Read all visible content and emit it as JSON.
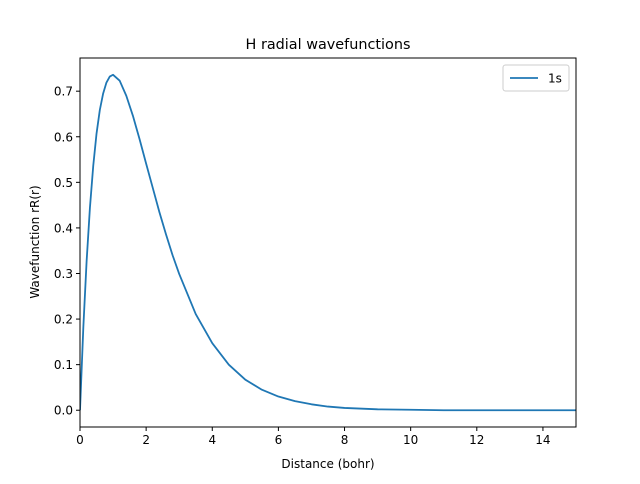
{
  "chart_data": {
    "type": "line",
    "title": "H radial wavefunctions",
    "xlabel": "Distance (bohr)",
    "ylabel": "Wavefunction rR(r)",
    "xlim": [
      0,
      15
    ],
    "ylim": [
      -0.0368,
      0.7728
    ],
    "xticks": [
      0,
      2,
      4,
      6,
      8,
      10,
      12,
      14
    ],
    "yticks": [
      0.0,
      0.1,
      0.2,
      0.3,
      0.4,
      0.5,
      0.6,
      0.7
    ],
    "xtick_labels": [
      "0",
      "2",
      "4",
      "6",
      "8",
      "10",
      "12",
      "14"
    ],
    "ytick_labels": [
      "0.0",
      "0.1",
      "0.2",
      "0.3",
      "0.4",
      "0.5",
      "0.6",
      "0.7"
    ],
    "grid": false,
    "legend_position": "top-right",
    "series": [
      {
        "name": "1s",
        "color": "#1f77b4",
        "x": [
          0,
          0.1,
          0.2,
          0.3,
          0.4,
          0.5,
          0.6,
          0.7,
          0.8,
          0.9,
          1.0,
          1.2,
          1.4,
          1.6,
          1.8,
          2.0,
          2.2,
          2.4,
          2.6,
          2.8,
          3.0,
          3.5,
          4.0,
          4.5,
          5.0,
          5.5,
          6.0,
          6.5,
          7.0,
          7.5,
          8.0,
          9.0,
          10.0,
          11.0,
          12.0,
          13.0,
          14.0,
          15.0
        ],
        "y": [
          0.0,
          0.181,
          0.327,
          0.444,
          0.536,
          0.607,
          0.659,
          0.695,
          0.719,
          0.732,
          0.736,
          0.723,
          0.69,
          0.646,
          0.595,
          0.541,
          0.488,
          0.435,
          0.386,
          0.34,
          0.299,
          0.211,
          0.147,
          0.1,
          0.067,
          0.045,
          0.03,
          0.02,
          0.013,
          0.008,
          0.005,
          0.002,
          0.001,
          0.0,
          0.0,
          0.0,
          0.0,
          0.0
        ]
      }
    ]
  }
}
